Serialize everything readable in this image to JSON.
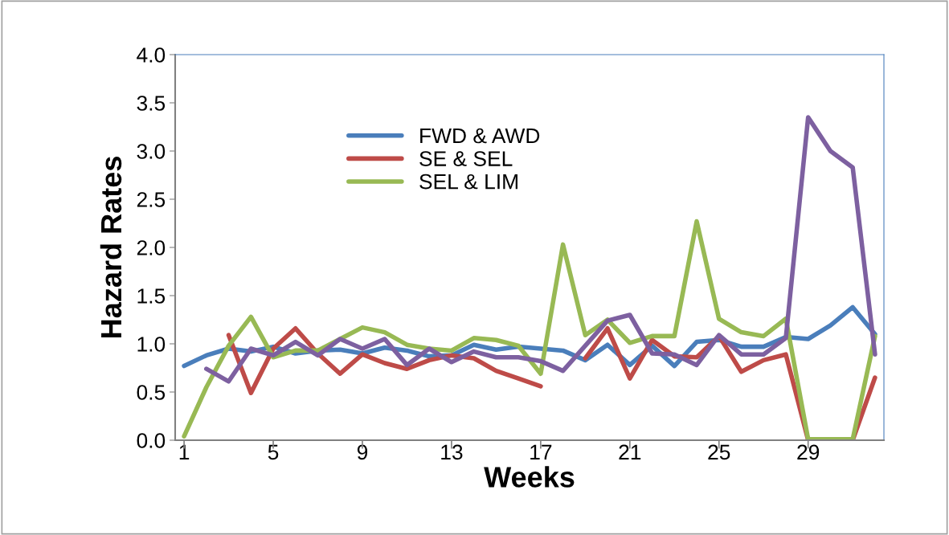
{
  "chart_data": {
    "type": "line",
    "xlabel": "Weeks",
    "ylabel": "Hazard Rates",
    "categories": [
      "1",
      null,
      null,
      null,
      "5",
      null,
      null,
      null,
      "9",
      null,
      null,
      null,
      "13",
      null,
      null,
      null,
      "17",
      null,
      null,
      null,
      "21",
      null,
      null,
      null,
      "25",
      null,
      null,
      null,
      "29",
      null,
      null,
      null
    ],
    "series": [
      {
        "name": "FWD & AWD",
        "color": "#4a7ebb",
        "values": [
          0.77,
          0.88,
          0.95,
          0.92,
          0.97,
          0.9,
          0.93,
          0.94,
          0.9,
          0.96,
          0.93,
          0.87,
          0.88,
          0.99,
          0.94,
          0.97,
          0.95,
          0.93,
          0.83,
          0.99,
          0.78,
          0.98,
          0.77,
          1.02,
          1.04,
          0.97,
          0.97,
          1.07,
          1.05,
          1.19,
          1.38,
          1.1
        ]
      },
      {
        "name": "SE & SEL",
        "color": "#be4b48",
        "values": [
          null,
          null,
          1.09,
          0.49,
          0.95,
          1.16,
          0.9,
          0.69,
          0.89,
          0.8,
          0.74,
          0.83,
          0.88,
          0.85,
          0.72,
          0.64,
          0.56,
          null,
          0.85,
          1.16,
          0.64,
          1.04,
          0.87,
          0.86,
          1.08,
          0.71,
          0.83,
          0.89,
          0.0,
          0.0,
          0.0,
          0.65
        ]
      },
      {
        "name": "SEL & LIM",
        "color": "#98b954",
        "values": [
          0.04,
          0.55,
          0.98,
          1.28,
          0.86,
          0.93,
          0.93,
          1.05,
          1.17,
          1.12,
          0.99,
          0.95,
          0.93,
          1.06,
          1.04,
          0.98,
          0.69,
          2.03,
          1.09,
          1.25,
          1.01,
          1.08,
          1.08,
          2.27,
          1.26,
          1.12,
          1.08,
          1.26,
          0.01,
          0.01,
          0.01,
          1.08
        ]
      },
      {
        "color": "#7d60a0",
        "values": [
          null,
          0.74,
          0.61,
          0.95,
          0.88,
          1.02,
          0.88,
          1.05,
          0.95,
          1.05,
          0.78,
          0.95,
          0.81,
          0.92,
          0.86,
          0.86,
          0.82,
          0.72,
          0.98,
          1.24,
          1.3,
          0.9,
          0.89,
          0.78,
          1.09,
          0.89,
          0.89,
          1.06,
          3.35,
          3.0,
          2.83,
          0.89
        ]
      }
    ],
    "ylim": [
      0,
      4
    ],
    "yticks": [
      {
        "value": 0,
        "label": "0.0"
      },
      {
        "value": 0.5,
        "label": "0.5"
      },
      {
        "value": 1,
        "label": "1.0"
      },
      {
        "value": 1.5,
        "label": "1.5"
      },
      {
        "value": 2,
        "label": "2.0"
      },
      {
        "value": 2.5,
        "label": "2.5"
      },
      {
        "value": 3,
        "label": "3.0"
      },
      {
        "value": 3.5,
        "label": "3.5"
      },
      {
        "value": 4,
        "label": "4.0"
      }
    ],
    "grid": false,
    "legend": "top",
    "marker": "none",
    "line_style": "solid"
  }
}
